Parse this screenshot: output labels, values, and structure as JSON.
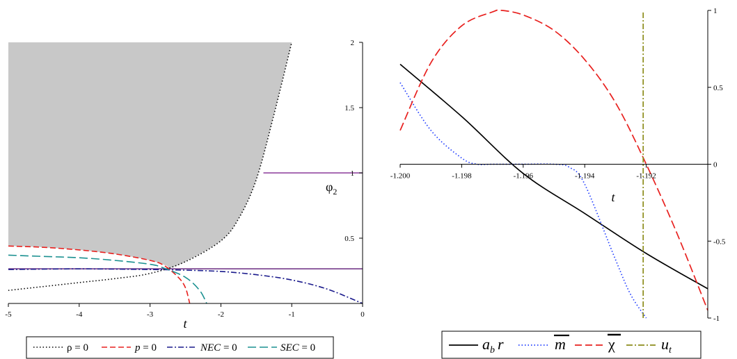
{
  "chart_data": [
    {
      "type": "line",
      "title": "",
      "xlabel": "t",
      "ylabel": "φ2",
      "xlim": [
        -5,
        0
      ],
      "ylim": [
        0,
        2
      ],
      "xticks": [
        "-5",
        "-4",
        "-3",
        "-2",
        "-1",
        "0"
      ],
      "yticks": [
        "0.5",
        "1",
        "1.5",
        "2"
      ],
      "shaded_region": "grey region above the ρ = 0 curve",
      "series": [
        {
          "name": "ρ = 0",
          "style": "dotted",
          "color": "#000000",
          "x": [
            -5,
            -4.5,
            -4,
            -3.5,
            -3,
            -2.5,
            -2,
            -1.75,
            -1.5,
            -1.25,
            -1
          ],
          "y": [
            0.1,
            0.13,
            0.16,
            0.19,
            0.23,
            0.32,
            0.48,
            0.65,
            0.95,
            1.45,
            2.0
          ]
        },
        {
          "name": "p = 0",
          "style": "dashed",
          "color": "#e8201e",
          "x": [
            -5,
            -4.5,
            -4,
            -3.5,
            -3,
            -2.8,
            -2.6,
            -2.5,
            -2.44
          ],
          "y": [
            0.44,
            0.43,
            0.41,
            0.38,
            0.33,
            0.29,
            0.2,
            0.12,
            0.0
          ]
        },
        {
          "name": "NEC = 0",
          "style": "dashdot",
          "color": "#1a1a8c",
          "x": [
            -5,
            -4,
            -3,
            -2.5,
            -2,
            -1.5,
            -1,
            -0.5,
            0
          ],
          "y": [
            0.26,
            0.265,
            0.26,
            0.255,
            0.245,
            0.22,
            0.18,
            0.11,
            0.0
          ]
        },
        {
          "name": "SEC = 0",
          "style": "longdash",
          "color": "#1a9090",
          "x": [
            -5,
            -4.5,
            -4,
            -3.5,
            -3,
            -2.8,
            -2.5,
            -2.3,
            -2.2
          ],
          "y": [
            0.37,
            0.36,
            0.35,
            0.33,
            0.3,
            0.27,
            0.2,
            0.1,
            0.0
          ]
        }
      ],
      "hlines": [
        {
          "y": 0.265,
          "color": "#6a2a80",
          "x": [
            -5,
            0
          ]
        },
        {
          "y": 1.0,
          "color": "#8a3a9a",
          "x": [
            -1.4,
            0
          ]
        }
      ],
      "legend": [
        "ρ = 0",
        "p = 0",
        "NEC = 0",
        "SEC = 0"
      ],
      "legend_position": "bottom"
    },
    {
      "type": "line",
      "title": "",
      "xlabel": "t",
      "ylabel": "",
      "xlim": [
        -1.2,
        -1.19
      ],
      "ylim": [
        -1,
        1
      ],
      "xticks": [
        "-1.200",
        "-1.198",
        "-1.196",
        "-1.194",
        "-1.192"
      ],
      "yticks": [
        "1",
        "0.5",
        "0",
        "-0.5",
        "-1"
      ],
      "series": [
        {
          "name": "a_b r",
          "style": "solid",
          "color": "#000000",
          "x": [
            -1.2,
            -1.198,
            -1.196,
            -1.194,
            -1.192,
            -1.19
          ],
          "y": [
            0.65,
            0.31,
            -0.06,
            -0.32,
            -0.58,
            -0.81
          ]
        },
        {
          "name": "m̄",
          "style": "dotted",
          "color": "#1f3cff",
          "x": [
            -1.2,
            -1.199,
            -1.198,
            -1.1975,
            -1.197,
            -1.196,
            -1.195,
            -1.1945,
            -1.194,
            -1.193,
            -1.1925,
            -1.192
          ],
          "y": [
            0.53,
            0.22,
            0.04,
            0.0,
            0.0,
            0.0,
            0.0,
            -0.02,
            -0.13,
            -0.62,
            -0.85,
            -1.0
          ]
        },
        {
          "name": "χ̄",
          "style": "longdash",
          "color": "#e8201e",
          "x": [
            -1.2,
            -1.199,
            -1.198,
            -1.197,
            -1.1967,
            -1.196,
            -1.195,
            -1.194,
            -1.193,
            -1.192,
            -1.191,
            -1.19
          ],
          "y": [
            0.22,
            0.66,
            0.9,
            0.99,
            1.0,
            0.97,
            0.87,
            0.68,
            0.4,
            0.0,
            -0.45,
            -0.95
          ]
        },
        {
          "name": "u_t",
          "style": "dashdot",
          "color": "#8c8c1a",
          "x": [
            -1.1921,
            -1.1921
          ],
          "y": [
            -1,
            1
          ]
        }
      ],
      "legend_position": "bottom"
    }
  ],
  "left_legend": {
    "rho": "ρ = 0",
    "p": "p",
    "nec": "NEC",
    "sec": "SEC",
    "eq0": "= 0"
  },
  "right_legend": {
    "ab": "a",
    "ab_sub": "b",
    "r": "r",
    "m": "m",
    "chi": "χ",
    "u": "u",
    "u_sub": "t"
  },
  "left_axis_labels": {
    "x": "t",
    "y": "φ",
    "y_sub": "2"
  },
  "right_axis_labels": {
    "x": "t"
  }
}
